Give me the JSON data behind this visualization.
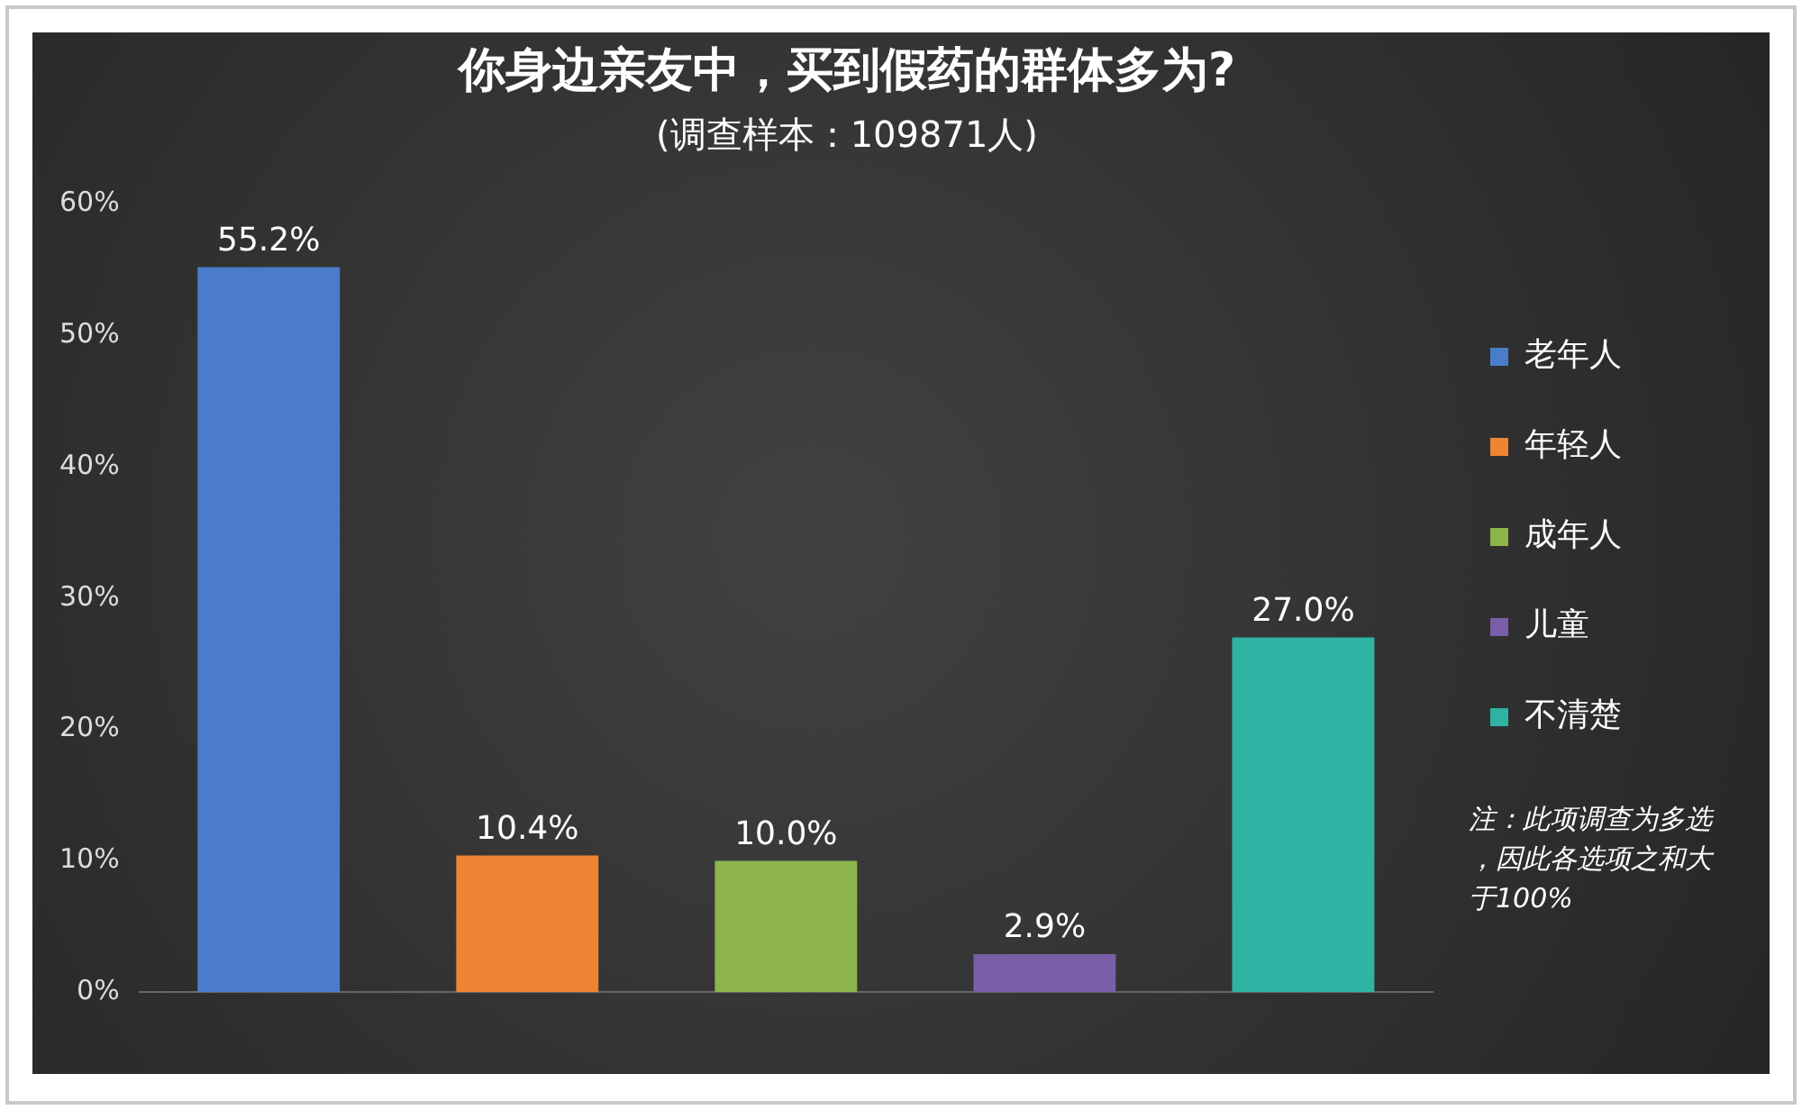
{
  "chart_data": {
    "type": "bar",
    "title": "你身边亲友中，买到假药的群体多为?",
    "subtitle": "(调查样本：109871人)",
    "categories": [
      null,
      null,
      null,
      null,
      null
    ],
    "series": [
      {
        "name": "老年人",
        "color": "#4a7cc9",
        "values": [
          55.2,
          null,
          null,
          null,
          null
        ]
      },
      {
        "name": "年轻人",
        "color": "#ee8534",
        "values": [
          null,
          10.4,
          null,
          null,
          null
        ]
      },
      {
        "name": "成年人",
        "color": "#8db54b",
        "values": [
          null,
          null,
          10.0,
          null,
          null
        ]
      },
      {
        "name": "儿童",
        "color": "#7a5ea8",
        "values": [
          null,
          null,
          null,
          2.9,
          null
        ]
      },
      {
        "name": "不清楚",
        "color": "#2fb3a3",
        "values": [
          null,
          null,
          null,
          null,
          27.0
        ]
      }
    ],
    "value_labels": [
      "55.2%",
      "10.4%",
      "10.0%",
      "2.9%",
      "27.0%"
    ],
    "ylim": [
      0,
      60
    ],
    "yticks": [
      {
        "value": 0,
        "label": "0%"
      },
      {
        "value": 10,
        "label": "10%"
      },
      {
        "value": 20,
        "label": "20%"
      },
      {
        "value": 30,
        "label": "30%"
      },
      {
        "value": 40,
        "label": "40%"
      },
      {
        "value": 50,
        "label": "50%"
      },
      {
        "value": 60,
        "label": "60%"
      }
    ],
    "grid": false,
    "legend": "right",
    "annotations": [
      "注：此项调查为多选，因此各选项之和大于100%"
    ]
  }
}
